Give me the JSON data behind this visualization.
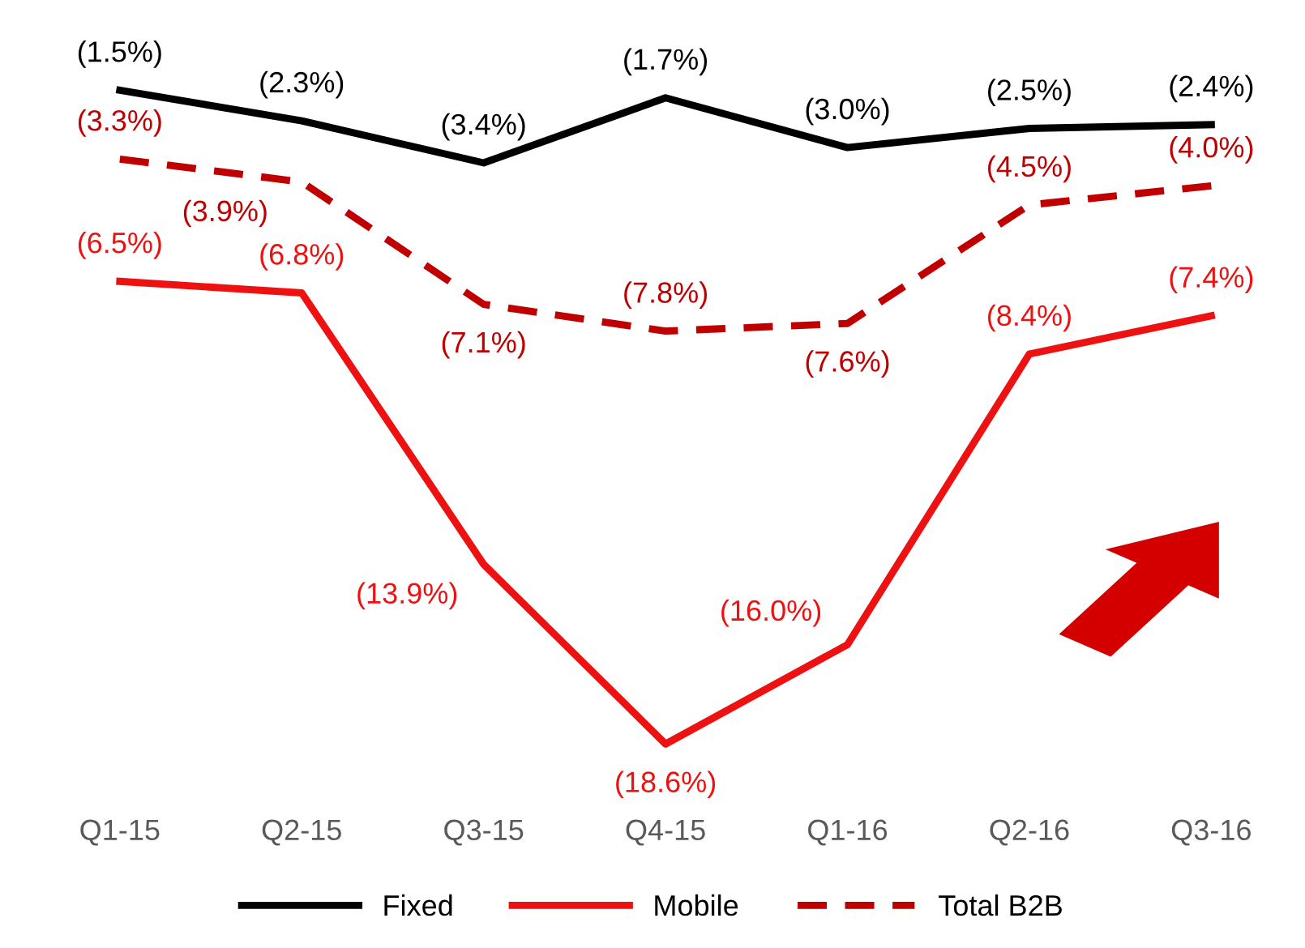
{
  "chart_data": {
    "type": "line",
    "categories": [
      "Q1-15",
      "Q2-15",
      "Q3-15",
      "Q4-15",
      "Q1-16",
      "Q2-16",
      "Q3-16"
    ],
    "series": [
      {
        "name": "Fixed",
        "color": "#000000",
        "line_style": "solid",
        "values": [
          -1.5,
          -2.3,
          -3.4,
          -1.7,
          -3.0,
          -2.5,
          -2.4
        ],
        "value_labels": [
          "(1.5%)",
          "(2.3%)",
          "(3.4%)",
          "(1.7%)",
          "(3.0%)",
          "(2.5%)",
          "(2.4%)"
        ]
      },
      {
        "name": "Mobile",
        "color": "#ee1111",
        "line_style": "solid",
        "values": [
          -6.5,
          -6.8,
          -13.9,
          -18.6,
          -16.0,
          -8.4,
          -7.4
        ],
        "value_labels": [
          "(6.5%)",
          "(6.8%)",
          "(13.9%)",
          "(18.6%)",
          "(16.0%)",
          "(8.4%)",
          "(7.4%)"
        ]
      },
      {
        "name": "Total B2B",
        "color": "#c00000",
        "line_style": "dashed",
        "values": [
          -3.3,
          -3.9,
          -7.1,
          -7.8,
          -7.6,
          -4.5,
          -4.0
        ],
        "value_labels": [
          "(3.3%)",
          "(3.9%)",
          "(7.1%)",
          "(7.8%)",
          "(7.6%)",
          "(4.5%)",
          "(4.0%)"
        ]
      }
    ],
    "legend": "bottom",
    "grid": false,
    "marker": "none"
  }
}
